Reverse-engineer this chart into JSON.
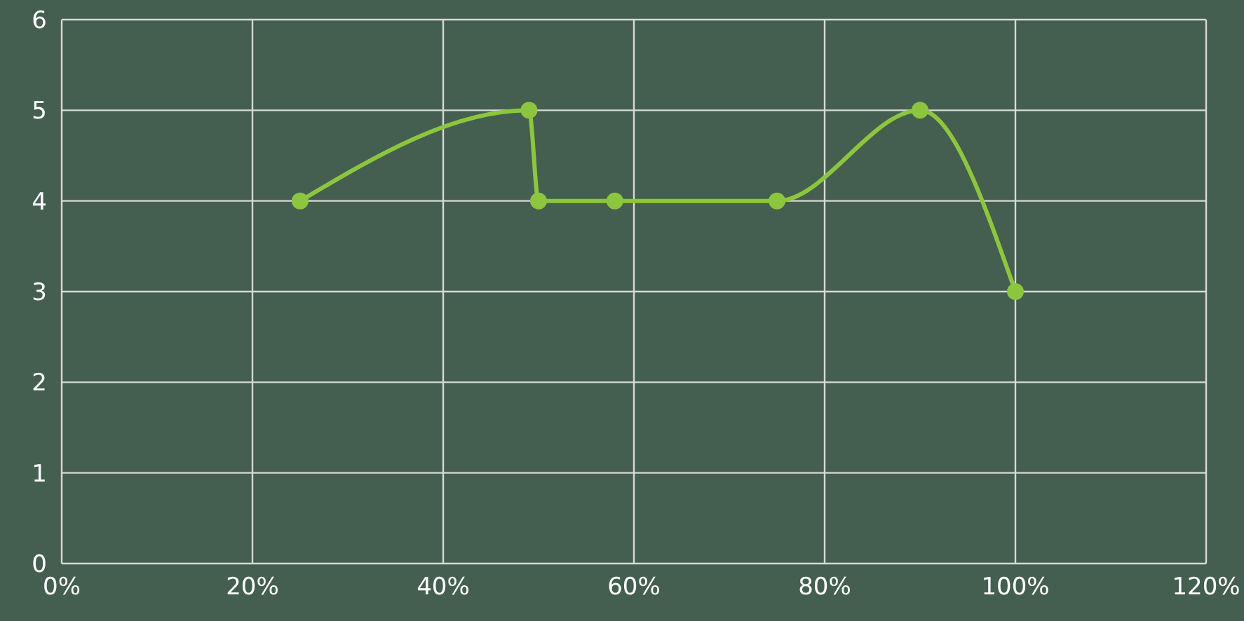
{
  "chart_data": {
    "type": "line",
    "x": [
      25,
      49,
      50,
      58,
      75,
      90,
      100
    ],
    "series": [
      {
        "color": "#8cc63f",
        "values": [
          4,
          5,
          4,
          4,
          4,
          5,
          3
        ]
      }
    ],
    "xlim": [
      0,
      120
    ],
    "xticks": [
      {
        "value": 0,
        "label": "0%"
      },
      {
        "value": 20,
        "label": "20%"
      },
      {
        "value": 40,
        "label": "40%"
      },
      {
        "value": 60,
        "label": "60%"
      },
      {
        "value": 80,
        "label": "80%"
      },
      {
        "value": 100,
        "label": "100%"
      },
      {
        "value": 120,
        "label": "120%"
      }
    ],
    "ylim": [
      0,
      6
    ],
    "yticks": [
      0,
      1,
      2,
      3,
      4,
      5,
      6
    ],
    "grid": true,
    "marker": "circle",
    "line_style": "solid",
    "legend": false
  }
}
